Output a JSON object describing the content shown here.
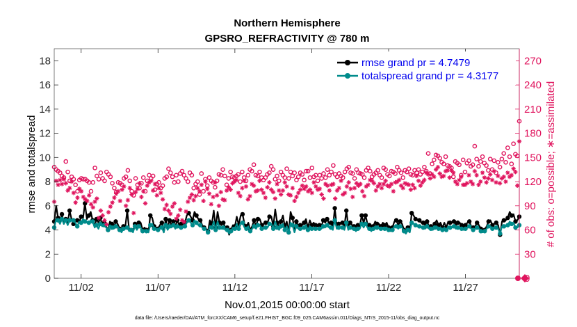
{
  "chart_data": {
    "type": "line",
    "title": "Northern Hemisphere",
    "subtitle": "GPSRO_REFRACTIVITY @ 780 m",
    "xlabel": "Nov.01,2015 00:00:00 start",
    "ylabel_left": "rmse and totalspread",
    "ylabel_right": "# of obs: o=possible; ∗=assimilated",
    "footnote": "data file: /Users/raeder/DAI/ATM_forcXX/CAM6_setup/f.e21.FHIST_BGC.f09_025.CAM6assim.011/Diags_NTrS_2015-11/obs_diag_output.nc",
    "xlim": [
      0.25,
      30.5
    ],
    "ylim_left": [
      0,
      19
    ],
    "ylim_right": [
      0,
      285
    ],
    "xticks": [
      {
        "x": 2,
        "label": "11/02"
      },
      {
        "x": 7,
        "label": "11/07"
      },
      {
        "x": 12,
        "label": "11/12"
      },
      {
        "x": 17,
        "label": "11/17"
      },
      {
        "x": 22,
        "label": "11/22"
      },
      {
        "x": 27,
        "label": "11/27"
      }
    ],
    "yticks_left": [
      {
        "v": 0,
        "label": "0"
      },
      {
        "v": 2,
        "label": "2"
      },
      {
        "v": 4,
        "label": "4"
      },
      {
        "v": 6,
        "label": "6"
      },
      {
        "v": 8,
        "label": "8"
      },
      {
        "v": 10,
        "label": "10"
      },
      {
        "v": 12,
        "label": "12"
      },
      {
        "v": 14,
        "label": "14"
      },
      {
        "v": 16,
        "label": "16"
      },
      {
        "v": 18,
        "label": "18"
      }
    ],
    "yticks_right": [
      {
        "v": 0,
        "label": "0"
      },
      {
        "v": 30,
        "label": "30"
      },
      {
        "v": 60,
        "label": "60"
      },
      {
        "v": 90,
        "label": "90"
      },
      {
        "v": 120,
        "label": "120"
      },
      {
        "v": 150,
        "label": "150"
      },
      {
        "v": 180,
        "label": "180"
      },
      {
        "v": 210,
        "label": "210"
      },
      {
        "v": 240,
        "label": "240"
      },
      {
        "v": 270,
        "label": "270"
      }
    ],
    "series": [
      {
        "name": "rmse grand pr = 4.7479",
        "axis": "left",
        "color": "#000000",
        "marker": "dot",
        "values": [
          4.7,
          6.0,
          5.0,
          4.6,
          5.3,
          4.5,
          4.9,
          4.6,
          5.6,
          4.9,
          4.5,
          4.8,
          4.8,
          4.6,
          5.1,
          5.0,
          6.2,
          4.9,
          5.2,
          5.5,
          4.8,
          4.3,
          4.9,
          4.6,
          5.0,
          4.4,
          4.6,
          4.3,
          4.0,
          4.7,
          4.5,
          4.2,
          4.7,
          4.5,
          4.1,
          3.9,
          4.3,
          4.3,
          5.6,
          4.0,
          4.0,
          3.9,
          4.5,
          4.2,
          4.6,
          4.6,
          4.0,
          4.2,
          4.0,
          3.8,
          5.2,
          5.0,
          4.3,
          4.2,
          4.1,
          4.4,
          4.6,
          3.8,
          4.9,
          4.2,
          4.8,
          4.4,
          4.7,
          4.3,
          4.8,
          4.4,
          4.5,
          4.5,
          4.6,
          5.2,
          5.4,
          5.1,
          4.8,
          5.5,
          5.2,
          4.9,
          4.8,
          4.4,
          4.2,
          4.1,
          3.9,
          4.8,
          4.5,
          5.6,
          4.2,
          5.5,
          4.6,
          4.4,
          4.6,
          4.2,
          4.2,
          3.6,
          4.0,
          4.4,
          4.3,
          5.1,
          4.4,
          5.2,
          5.3,
          4.5,
          4.3,
          4.6,
          4.0,
          4.3,
          4.8,
          4.3,
          4.9,
          4.9,
          4.4,
          4.5,
          4.6,
          4.6,
          5.1,
          5.1,
          4.3,
          5.7,
          4.6,
          4.2,
          4.7,
          5.2,
          4.3,
          4.7,
          3.8,
          5.5,
          5.0,
          4.0,
          4.7,
          4.3,
          4.4,
          4.4,
          4.6,
          4.9,
          4.2,
          4.8,
          4.4,
          4.6,
          4.4,
          4.3,
          4.4,
          4.3,
          4.8,
          4.6,
          4.9,
          4.5,
          4.6,
          4.2,
          5.8,
          4.3,
          4.5,
          4.6,
          4.6,
          4.3,
          5.6,
          4.3,
          4.6,
          4.4,
          4.3,
          4.1,
          4.4,
          4.3,
          5.2,
          4.6,
          5.2,
          4.5,
          4.4,
          4.1,
          4.3,
          4.7,
          4.5,
          4.5,
          4.3,
          4.6,
          4.4,
          4.6,
          4.2,
          4.0,
          4.2,
          4.7,
          4.8,
          4.4,
          4.7,
          4.5,
          4.0,
          3.7,
          4.2,
          3.8,
          5.4,
          5.2,
          4.9,
          4.8,
          4.8,
          4.6,
          4.6,
          4.4,
          4.7,
          4.3,
          4.3,
          4.2,
          4.5,
          4.8,
          4.4,
          4.6,
          4.2,
          4.6,
          4.2,
          4.7,
          4.6,
          4.6,
          4.7,
          4.4,
          4.6,
          4.6,
          4.4,
          4.2,
          4.4,
          4.6,
          4.7,
          4.3,
          4.2,
          4.3,
          4.6,
          4.4,
          4.1,
          3.9,
          4.0,
          4.3,
          4.7,
          4.8,
          4.4,
          4.5,
          4.6,
          4.4,
          3.6,
          4.7,
          4.8,
          4.8,
          5.0,
          5.5,
          5.2,
          5.3,
          4.7,
          4.8,
          5.1
        ]
      },
      {
        "name": "totalspread grand pr = 4.3177",
        "axis": "left",
        "color": "#008b8b",
        "marker": "dot",
        "values": [
          4.2,
          4.9,
          4.8,
          4.5,
          4.9,
          4.5,
          4.8,
          4.4,
          4.8,
          4.8,
          4.8,
          4.6,
          4.3,
          4.7,
          4.6,
          4.9,
          4.7,
          4.6,
          4.6,
          4.8,
          4.7,
          4.2,
          4.4,
          4.1,
          4.5,
          4.3,
          4.4,
          4.2,
          4.0,
          4.4,
          4.2,
          4.1,
          4.3,
          4.3,
          4.0,
          3.8,
          4.1,
          4.1,
          4.2,
          3.9,
          4.0,
          3.8,
          4.3,
          4.0,
          4.3,
          4.2,
          3.9,
          4.0,
          3.9,
          3.8,
          4.4,
          4.5,
          4.1,
          4.0,
          4.0,
          4.2,
          4.2,
          3.8,
          4.4,
          4.0,
          4.3,
          4.2,
          4.4,
          4.1,
          4.3,
          4.2,
          4.2,
          4.2,
          4.3,
          4.6,
          4.8,
          4.6,
          4.4,
          4.8,
          4.6,
          4.4,
          4.4,
          4.2,
          4.1,
          4.0,
          3.8,
          4.3,
          4.2,
          4.7,
          4.0,
          4.7,
          4.2,
          4.1,
          4.2,
          4.0,
          4.0,
          3.7,
          3.9,
          4.2,
          4.1,
          4.5,
          4.1,
          4.6,
          4.6,
          4.2,
          4.1,
          4.3,
          3.9,
          4.1,
          4.3,
          4.1,
          4.4,
          4.4,
          4.1,
          4.2,
          4.2,
          4.2,
          4.5,
          4.5,
          4.1,
          4.7,
          4.2,
          4.0,
          4.3,
          4.5,
          4.0,
          4.3,
          3.8,
          4.6,
          4.4,
          3.8,
          4.3,
          4.1,
          4.1,
          4.1,
          4.2,
          4.4,
          4.0,
          4.3,
          4.1,
          4.2,
          4.1,
          4.1,
          4.1,
          4.1,
          4.3,
          4.2,
          4.4,
          4.2,
          4.2,
          4.0,
          4.8,
          4.1,
          4.2,
          4.2,
          4.2,
          4.0,
          4.6,
          4.0,
          4.2,
          4.1,
          4.1,
          3.9,
          4.1,
          4.1,
          4.5,
          4.2,
          4.5,
          4.2,
          4.1,
          3.9,
          4.1,
          4.3,
          4.2,
          4.2,
          4.1,
          4.2,
          4.1,
          4.2,
          4.0,
          3.9,
          4.0,
          4.3,
          4.3,
          4.1,
          4.3,
          4.2,
          3.9,
          3.7,
          4.0,
          3.8,
          4.6,
          4.5,
          4.4,
          4.3,
          4.3,
          4.2,
          4.2,
          4.1,
          4.3,
          4.1,
          4.1,
          4.0,
          4.2,
          4.3,
          4.1,
          4.2,
          4.0,
          4.2,
          4.0,
          4.3,
          4.2,
          4.2,
          4.3,
          4.1,
          4.2,
          4.2,
          4.1,
          4.0,
          4.1,
          4.2,
          4.3,
          4.1,
          4.0,
          4.1,
          4.2,
          4.1,
          3.9,
          3.8,
          3.9,
          4.1,
          4.3,
          4.3,
          4.1,
          4.2,
          4.2,
          4.1,
          3.7,
          4.3,
          4.3,
          4.3,
          4.4,
          4.7,
          4.5,
          4.6,
          4.2,
          4.2,
          4.4
        ]
      },
      {
        "name": "possible",
        "axis": "right",
        "color": "#e0155e",
        "marker": "circle",
        "values": [
          138,
          135,
          133,
          131,
          127,
          125,
          145,
          132,
          121,
          126,
          123,
          116,
          108,
          122,
          124,
          123,
          123,
          121,
          119,
          108,
          119,
          137,
          127,
          123,
          131,
          124,
          121,
          132,
          129,
          126,
          118,
          112,
          107,
          119,
          118,
          116,
          124,
          126,
          134,
          121,
          108,
          103,
          124,
          116,
          112,
          118,
          125,
          108,
          121,
          128,
          124,
          127,
          110,
          117,
          119,
          112,
          115,
          124,
          126,
          136,
          131,
          126,
          119,
          128,
          120,
          130,
          133,
          128,
          124,
          120,
          131,
          128,
          112,
          117,
          120,
          104,
          130,
          108,
          123,
          115,
          125,
          121,
          119,
          113,
          121,
          129,
          128,
          135,
          127,
          116,
          124,
          132,
          126,
          125,
          127,
          129,
          120,
          132,
          125,
          121,
          128,
          135,
          133,
          141,
          128,
          127,
          132,
          125,
          122,
          125,
          129,
          131,
          139,
          135,
          123,
          127,
          121,
          132,
          128,
          125,
          136,
          124,
          132,
          127,
          131,
          122,
          126,
          131,
          129,
          122,
          133,
          133,
          125,
          137,
          126,
          128,
          121,
          128,
          124,
          130,
          125,
          135,
          128,
          132,
          140,
          129,
          126,
          130,
          127,
          125,
          132,
          136,
          138,
          131,
          130,
          124,
          135,
          131,
          130,
          129,
          125,
          134,
          137,
          133,
          126,
          129,
          131,
          134,
          128,
          125,
          137,
          135,
          129,
          127,
          133,
          132,
          130,
          138,
          134,
          131,
          125,
          134,
          132,
          136,
          129,
          128,
          134,
          131,
          135,
          129,
          132,
          138,
          133,
          155,
          130,
          142,
          147,
          153,
          152,
          149,
          144,
          142,
          151,
          140,
          139,
          137,
          126,
          145,
          143,
          141,
          128,
          147,
          132,
          143,
          146,
          139,
          141,
          164,
          148,
          139,
          145,
          151,
          143,
          140,
          134,
          148,
          135,
          146,
          131,
          144,
          138,
          148,
          155,
          144,
          162,
          151,
          142,
          167,
          154,
          152,
          195
        ]
      },
      {
        "name": "assimilated",
        "axis": "right",
        "color": "#e0155e",
        "marker": "asterisk",
        "values": [
          95,
          121,
          116,
          122,
          117,
          123,
          118,
          109,
          112,
          120,
          106,
          94,
          100,
          111,
          108,
          101,
          98,
          96,
          103,
          92,
          88,
          95,
          99,
          75,
          84,
          78,
          72,
          67,
          82,
          89,
          94,
          100,
          105,
          108,
          96,
          110,
          114,
          90,
          97,
          112,
          104,
          81,
          107,
          111,
          118,
          101,
          108,
          93,
          115,
          119,
          121,
          109,
          117,
          103,
          112,
          106,
          98,
          86,
          91,
          84,
          80,
          89,
          93,
          74,
          78,
          85,
          72,
          70,
          83,
          95,
          100,
          104,
          97,
          102,
          112,
          108,
          116,
          96,
          120,
          111,
          105,
          92,
          101,
          119,
          103,
          90,
          107,
          98,
          97,
          109,
          113,
          110,
          118,
          120,
          122,
          106,
          102,
          112,
          121,
          114,
          98,
          102,
          117,
          115,
          108,
          109,
          121,
          110,
          106,
          100,
          113,
          119,
          110,
          107,
          99,
          117,
          109,
          104,
          109,
          119,
          114,
          104,
          103,
          112,
          96,
          101,
          106,
          110,
          115,
          111,
          114,
          108,
          110,
          106,
          119,
          114,
          110,
          111,
          104,
          99,
          117,
          115,
          109,
          116,
          117,
          99,
          109,
          112,
          121,
          104,
          106,
          114,
          119,
          111,
          101,
          112,
          118,
          115,
          117,
          108,
          102,
          114,
          116,
          122,
          121,
          118,
          109,
          114,
          117,
          112,
          117,
          121,
          115,
          114,
          117,
          108,
          119,
          120,
          122,
          115,
          112,
          118,
          117,
          116,
          110,
          116,
          112,
          127,
          121,
          115,
          119,
          122,
          131,
          129,
          124,
          129,
          126,
          135,
          138,
          130,
          126,
          127,
          133,
          134,
          125,
          134,
          131,
          120,
          117,
          122,
          126,
          116,
          116,
          118,
          128,
          120,
          117,
          133,
          128,
          116,
          120,
          131,
          125,
          119,
          124,
          129,
          122,
          133,
          119,
          127,
          118,
          124,
          126,
          120,
          131,
          126,
          128,
          136,
          132,
          115,
          170
        ]
      }
    ],
    "legend": [
      {
        "label": "rmse grand pr = 4.7479",
        "color": "#000000"
      },
      {
        "label": "totalspread grand pr = 4.3177",
        "color": "#008b8b"
      }
    ],
    "legend_position": "top-right"
  }
}
